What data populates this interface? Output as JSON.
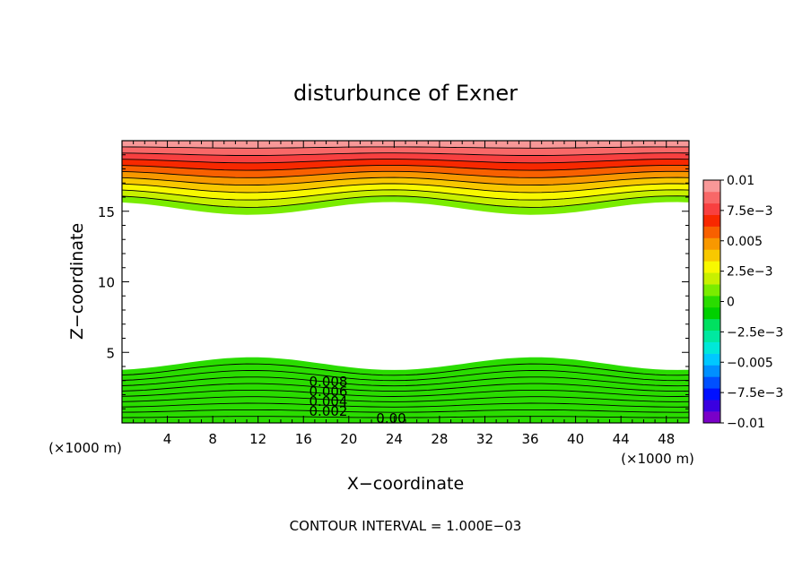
{
  "chart_data": {
    "type": "contour",
    "title": "disturbunce of Exner",
    "xlabel": "X−coordinate",
    "ylabel": "Z−coordinate",
    "x_unit": "(×1000 m)",
    "y_unit": "(×1000 m)",
    "footer": "CONTOUR INTERVAL = 1.000E−03",
    "xlim": [
      0,
      50
    ],
    "ylim": [
      0,
      20
    ],
    "x_ticks": [
      4,
      8,
      12,
      16,
      20,
      24,
      28,
      32,
      36,
      40,
      44,
      48
    ],
    "x_tick_labels": [
      "4",
      "8",
      "12",
      "16",
      "20",
      "24",
      "28",
      "32",
      "36",
      "40",
      "44",
      "48"
    ],
    "y_ticks": [
      5,
      10,
      15
    ],
    "y_tick_labels": [
      "5",
      "10",
      "15"
    ],
    "contour_interval": 0.001,
    "contour_labels": [
      "0.008",
      "0.006",
      "0.004",
      "0.002",
      "0.00"
    ],
    "colorbar": {
      "min": -0.01,
      "max": 0.01,
      "tick_labels": [
        "0.01",
        "7.5e−3",
        "0.005",
        "2.5e−3",
        "0",
        "−2.5e−3",
        "−0.005",
        "−7.5e−3",
        "−0.01"
      ],
      "colors": [
        "#7a00c8",
        "#3a00e0",
        "#0010ff",
        "#0050ff",
        "#0090ff",
        "#00c8ff",
        "#00e8d8",
        "#00e8a0",
        "#00e060",
        "#00d000",
        "#2adc00",
        "#7aec00",
        "#c8f000",
        "#f8f800",
        "#f8c800",
        "#f89800",
        "#f86000",
        "#f82800",
        "#f84040",
        "#f86868",
        "#f89898"
      ]
    },
    "field": {
      "upper_band": {
        "z_bottom": 15.2,
        "z_top": 20,
        "value_top": 0.01,
        "value_bottom": 0.0005
      },
      "lower_band": {
        "z_bottom": 0,
        "z_top": 4.2,
        "value_top": 0.0005,
        "value_bottom": -0.0005
      },
      "undulation_amplitude_km": 0.45,
      "undulation_period_km": 25
    }
  }
}
